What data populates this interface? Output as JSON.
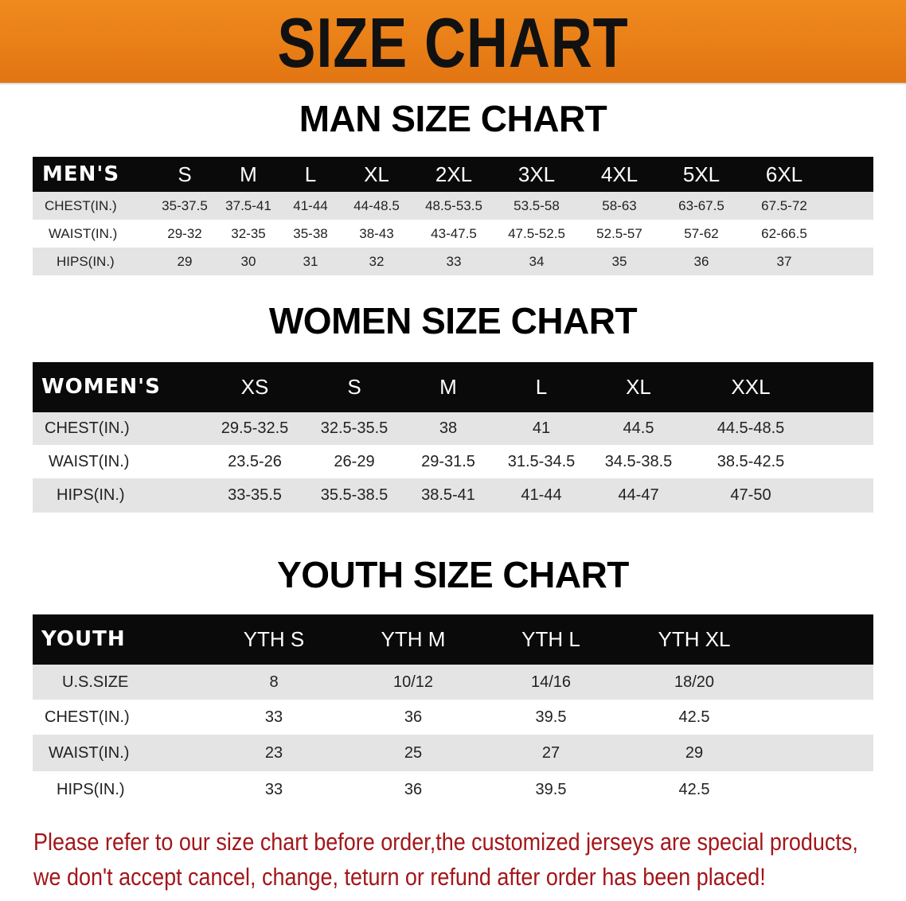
{
  "banner": {
    "title": "SIZE CHART",
    "color": "#e8801a"
  },
  "men": {
    "title": "MAN SIZE CHART",
    "header": [
      "MEN'S",
      "S",
      "M",
      "L",
      "XL",
      "2XL",
      "3XL",
      "4XL",
      "5XL",
      "6XL"
    ],
    "rows": [
      [
        "CHEST(IN.)",
        "35-37.5",
        "37.5-41",
        "41-44",
        "44-48.5",
        "48.5-53.5",
        "53.5-58",
        "58-63",
        "63-67.5",
        "67.5-72"
      ],
      [
        "WAIST(IN.)",
        "29-32",
        "32-35",
        "35-38",
        "38-43",
        "43-47.5",
        "47.5-52.5",
        "52.5-57",
        "57-62",
        "62-66.5"
      ],
      [
        "HIPS(IN.)",
        "29",
        "30",
        "31",
        "32",
        "33",
        "34",
        "35",
        "36",
        "37"
      ]
    ]
  },
  "women": {
    "title": "WOMEN SIZE CHART",
    "header": [
      "WOMEN'S",
      "XS",
      "S",
      "M",
      "L",
      "XL",
      "XXL"
    ],
    "rows": [
      [
        "CHEST(IN.)",
        "29.5-32.5",
        "32.5-35.5",
        "38",
        "41",
        "44.5",
        "44.5-48.5"
      ],
      [
        "WAIST(IN.)",
        "23.5-26",
        "26-29",
        "29-31.5",
        "31.5-34.5",
        "34.5-38.5",
        "38.5-42.5"
      ],
      [
        "HIPS(IN.)",
        "33-35.5",
        "35.5-38.5",
        "38.5-41",
        "41-44",
        "44-47",
        "47-50"
      ]
    ]
  },
  "youth": {
    "title": "YOUTH SIZE CHART",
    "header": [
      "YOUTH",
      "YTH S",
      "YTH M",
      "YTH L",
      "YTH XL"
    ],
    "rows": [
      [
        "U.S.SIZE",
        "8",
        "10/12",
        "14/16",
        "18/20"
      ],
      [
        "CHEST(IN.)",
        "33",
        "36",
        "39.5",
        "42.5"
      ],
      [
        "WAIST(IN.)",
        "23",
        "25",
        "27",
        "29"
      ],
      [
        "HIPS(IN.)",
        "33",
        "36",
        "39.5",
        "42.5"
      ]
    ]
  },
  "note": {
    "line1": "Please refer to our size chart before order,the customized jerseys are special products,",
    "line2": "we don't accept cancel, change, teturn or refund after order has been placed!",
    "color": "#a3161a"
  }
}
